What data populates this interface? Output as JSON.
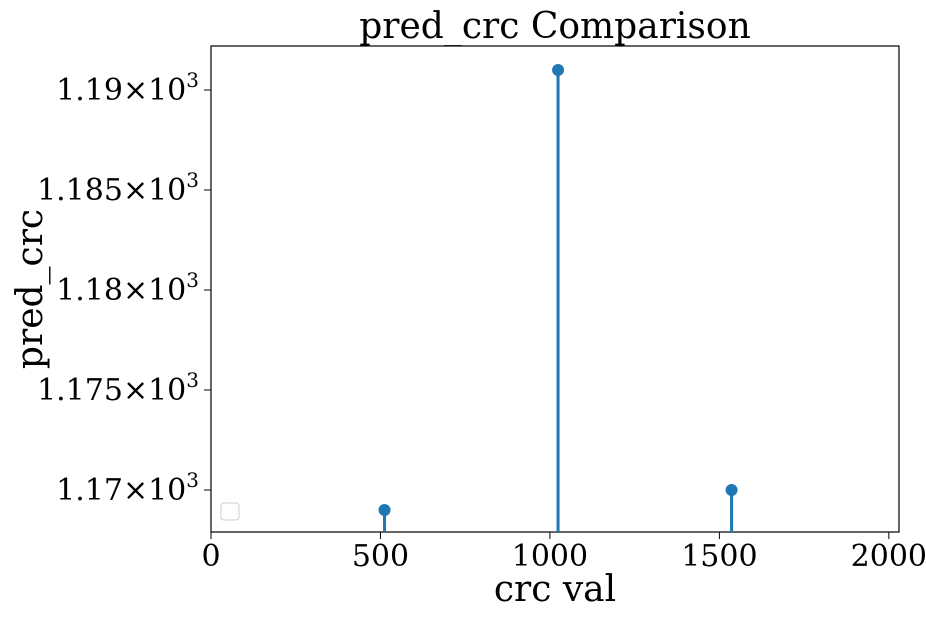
{
  "chart_data": {
    "type": "stem",
    "title": "pred_crc Comparison",
    "xlabel": "crc val",
    "ylabel": "pred_crc",
    "xlim": [
      0,
      2030
    ],
    "ylim": [
      1167.9,
      1192.2
    ],
    "x_ticks": [
      0,
      500,
      1000,
      1500,
      2000
    ],
    "y_ticks": [
      1170,
      1175,
      1180,
      1185,
      1190
    ],
    "y_tick_labels": [
      {
        "mantissa": "1.17",
        "times": "×",
        "base": "10",
        "exp": "3"
      },
      {
        "mantissa": "1.175",
        "times": "×",
        "base": "10",
        "exp": "3"
      },
      {
        "mantissa": "1.18",
        "times": "×",
        "base": "10",
        "exp": "3"
      },
      {
        "mantissa": "1.185",
        "times": "×",
        "base": "10",
        "exp": "3"
      },
      {
        "mantissa": "1.19",
        "times": "×",
        "base": "10",
        "exp": "3"
      }
    ],
    "points": [
      {
        "x": 512,
        "y": 1169
      },
      {
        "x": 1024,
        "y": 1191
      },
      {
        "x": 1536,
        "y": 1170
      }
    ],
    "color": "#1f77b4",
    "grid": false,
    "legend": "lower-left (empty)"
  }
}
